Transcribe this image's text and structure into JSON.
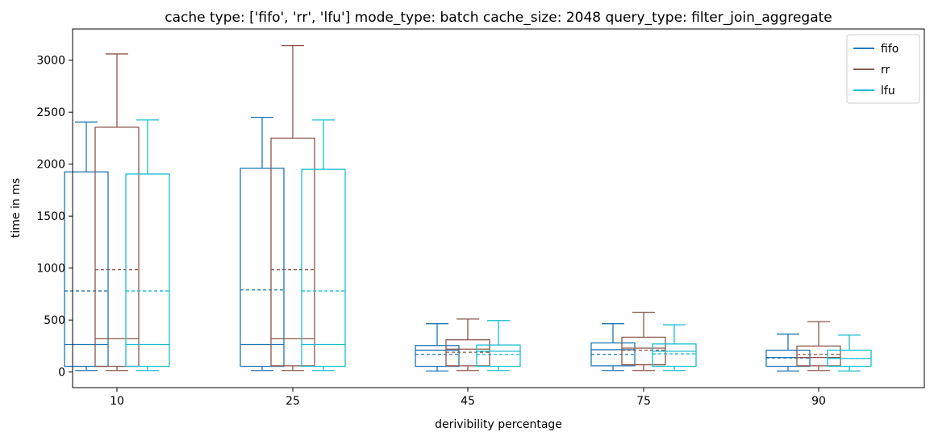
{
  "chart_data": {
    "type": "box",
    "title": "cache type: ['fifo', 'rr', 'lfu'] mode_type: batch cache_size: 2048 query_type: filter_join_aggregate",
    "xlabel": "derivibility percentage",
    "ylabel": "time in ms",
    "categories": [
      "10",
      "25",
      "45",
      "75",
      "90"
    ],
    "ylim": [
      -150,
      3300
    ],
    "yticks": [
      0,
      500,
      1000,
      1500,
      2000,
      2500,
      3000
    ],
    "legend_position": "top-right",
    "series": [
      {
        "name": "fifo",
        "color": "#1f77b4",
        "boxes": [
          {
            "whislo": 15,
            "q1": 55,
            "med": 265,
            "q3": 1925,
            "whishi": 2405,
            "mean": 780
          },
          {
            "whislo": 15,
            "q1": 55,
            "med": 265,
            "q3": 1960,
            "whishi": 2450,
            "mean": 790
          },
          {
            "whislo": 10,
            "q1": 55,
            "med": 210,
            "q3": 255,
            "whishi": 465,
            "mean": 170
          },
          {
            "whislo": 15,
            "q1": 60,
            "med": 215,
            "q3": 280,
            "whishi": 465,
            "mean": 170
          },
          {
            "whislo": 10,
            "q1": 55,
            "med": 140,
            "q3": 210,
            "whishi": 365,
            "mean": 135
          }
        ]
      },
      {
        "name": "rr",
        "color": "#8c564b",
        "boxes": [
          {
            "whislo": 15,
            "q1": 55,
            "med": 320,
            "q3": 2355,
            "whishi": 3060,
            "mean": 985
          },
          {
            "whislo": 15,
            "q1": 60,
            "med": 320,
            "q3": 2250,
            "whishi": 3140,
            "mean": 985
          },
          {
            "whislo": 15,
            "q1": 60,
            "med": 220,
            "q3": 310,
            "whishi": 510,
            "mean": 190
          },
          {
            "whislo": 15,
            "q1": 70,
            "med": 230,
            "q3": 335,
            "whishi": 575,
            "mean": 210
          },
          {
            "whislo": 15,
            "q1": 60,
            "med": 140,
            "q3": 250,
            "whishi": 485,
            "mean": 170
          }
        ]
      },
      {
        "name": "lfu",
        "color": "#17becf",
        "boxes": [
          {
            "whislo": 15,
            "q1": 55,
            "med": 265,
            "q3": 1905,
            "whishi": 2425,
            "mean": 780
          },
          {
            "whislo": 15,
            "q1": 55,
            "med": 265,
            "q3": 1950,
            "whishi": 2425,
            "mean": 780
          },
          {
            "whislo": 15,
            "q1": 55,
            "med": 200,
            "q3": 260,
            "whishi": 495,
            "mean": 170
          },
          {
            "whislo": 15,
            "q1": 55,
            "med": 200,
            "q3": 270,
            "whishi": 455,
            "mean": 175
          },
          {
            "whislo": 10,
            "q1": 55,
            "med": 130,
            "q3": 210,
            "whishi": 355,
            "mean": 130
          }
        ]
      }
    ]
  }
}
